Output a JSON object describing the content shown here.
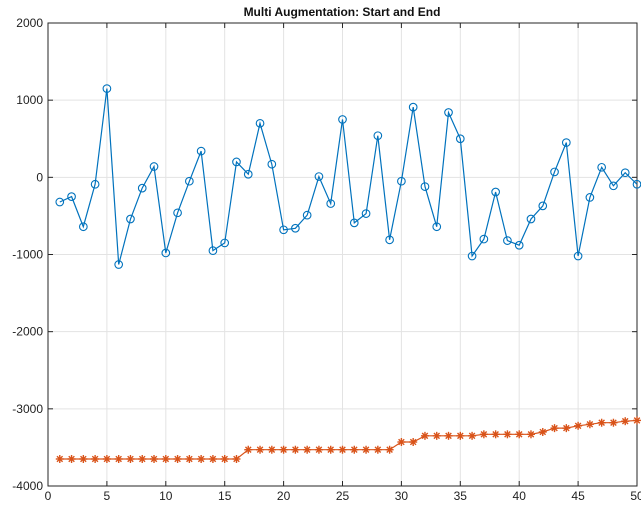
{
  "chart_data": {
    "type": "line",
    "title": "Multi Augmentation: Start and End",
    "xlabel": "",
    "ylabel": "",
    "xlim": [
      0,
      50
    ],
    "ylim": [
      -4000,
      2000
    ],
    "xticks": [
      0,
      5,
      10,
      15,
      20,
      25,
      30,
      35,
      40,
      45,
      50
    ],
    "yticks": [
      -4000,
      -3000,
      -2000,
      -1000,
      0,
      1000,
      2000
    ],
    "grid": true,
    "series": [
      {
        "marker": "circle",
        "color": "#0072BD",
        "x": [
          1,
          2,
          3,
          4,
          5,
          6,
          7,
          8,
          9,
          10,
          11,
          12,
          13,
          14,
          15,
          16,
          17,
          18,
          19,
          20,
          21,
          22,
          23,
          24,
          25,
          26,
          27,
          28,
          29,
          30,
          31,
          32,
          33,
          34,
          35,
          36,
          37,
          38,
          39,
          40,
          41,
          42,
          43,
          44,
          45,
          46,
          47,
          48,
          49,
          50
        ],
        "y": [
          -320,
          -250,
          -640,
          -90,
          1150,
          -1130,
          -540,
          -140,
          140,
          -980,
          -460,
          -50,
          340,
          -950,
          -850,
          200,
          40,
          700,
          170,
          -680,
          -660,
          -490,
          10,
          -340,
          750,
          -590,
          -470,
          540,
          -810,
          -50,
          910,
          -120,
          -640,
          840,
          500,
          -1020,
          -800,
          -190,
          -820,
          -880,
          -540,
          -370,
          70,
          450,
          -1020,
          -260,
          130,
          -110,
          60,
          -90
        ]
      },
      {
        "marker": "asterisk",
        "color": "#D95319",
        "x": [
          1,
          2,
          3,
          4,
          5,
          6,
          7,
          8,
          9,
          10,
          11,
          12,
          13,
          14,
          15,
          16,
          17,
          18,
          19,
          20,
          21,
          22,
          23,
          24,
          25,
          26,
          27,
          28,
          29,
          30,
          31,
          32,
          33,
          34,
          35,
          36,
          37,
          38,
          39,
          40,
          41,
          42,
          43,
          44,
          45,
          46,
          47,
          48,
          49,
          50
        ],
        "y": [
          -3650,
          -3650,
          -3650,
          -3650,
          -3650,
          -3650,
          -3650,
          -3650,
          -3650,
          -3650,
          -3650,
          -3650,
          -3650,
          -3650,
          -3650,
          -3650,
          -3530,
          -3530,
          -3530,
          -3530,
          -3530,
          -3530,
          -3530,
          -3530,
          -3530,
          -3530,
          -3530,
          -3530,
          -3530,
          -3430,
          -3430,
          -3350,
          -3350,
          -3350,
          -3350,
          -3350,
          -3330,
          -3330,
          -3330,
          -3330,
          -3330,
          -3300,
          -3250,
          -3250,
          -3220,
          -3200,
          -3180,
          -3180,
          -3160,
          -3150
        ]
      }
    ]
  }
}
